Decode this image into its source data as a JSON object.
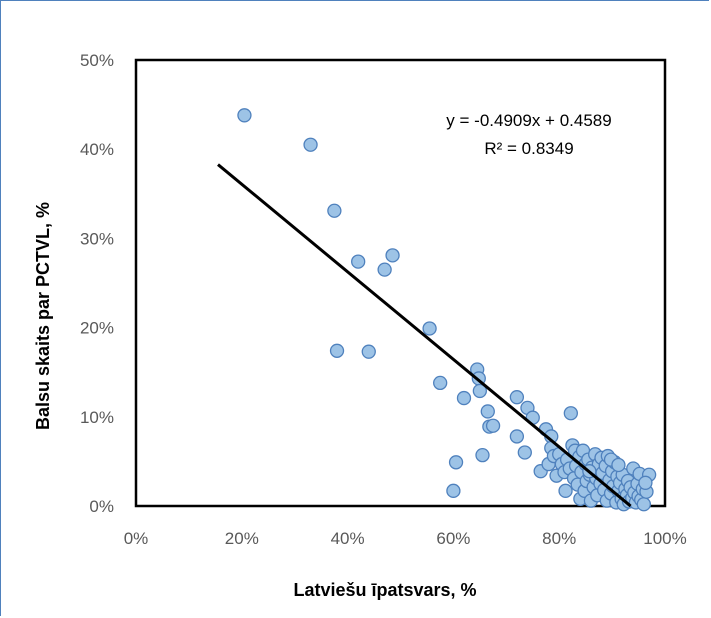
{
  "chart_data": {
    "type": "scatter",
    "title": "",
    "xlabel": "Latviešu īpatsvars, %",
    "ylabel": "Balsu skaits par PCTVL, %",
    "xlim": [
      0,
      1
    ],
    "ylim": [
      0,
      0.5
    ],
    "x_ticks": [
      "0%",
      "20%",
      "40%",
      "60%",
      "80%",
      "100%"
    ],
    "y_ticks": [
      "0%",
      "10%",
      "20%",
      "30%",
      "40%",
      "50%"
    ],
    "grid": false,
    "legend": "none",
    "marker_color": "#9dc3e6",
    "marker_edge_color": "#4f81bd",
    "trendline": {
      "type": "linear",
      "slope": -0.4909,
      "intercept": 0.4589,
      "x_range": [
        0.155,
        0.935
      ],
      "equation_label": "y = -0.4909x + 0.4589",
      "r2_label": "R² = 0.8349",
      "color": "#000000"
    },
    "points": [
      [
        0.205,
        0.438
      ],
      [
        0.33,
        0.405
      ],
      [
        0.375,
        0.331
      ],
      [
        0.38,
        0.174
      ],
      [
        0.42,
        0.274
      ],
      [
        0.44,
        0.173
      ],
      [
        0.47,
        0.265
      ],
      [
        0.485,
        0.281
      ],
      [
        0.555,
        0.199
      ],
      [
        0.575,
        0.138
      ],
      [
        0.6,
        0.017
      ],
      [
        0.605,
        0.049
      ],
      [
        0.62,
        0.121
      ],
      [
        0.645,
        0.153
      ],
      [
        0.648,
        0.143
      ],
      [
        0.65,
        0.129
      ],
      [
        0.655,
        0.057
      ],
      [
        0.665,
        0.106
      ],
      [
        0.668,
        0.089
      ],
      [
        0.675,
        0.09
      ],
      [
        0.72,
        0.078
      ],
      [
        0.72,
        0.122
      ],
      [
        0.735,
        0.06
      ],
      [
        0.74,
        0.11
      ],
      [
        0.75,
        0.099
      ],
      [
        0.765,
        0.039
      ],
      [
        0.775,
        0.086
      ],
      [
        0.78,
        0.047
      ],
      [
        0.785,
        0.078
      ],
      [
        0.785,
        0.065
      ],
      [
        0.79,
        0.056
      ],
      [
        0.795,
        0.034
      ],
      [
        0.8,
        0.058
      ],
      [
        0.805,
        0.047
      ],
      [
        0.81,
        0.038
      ],
      [
        0.812,
        0.017
      ],
      [
        0.815,
        0.052
      ],
      [
        0.82,
        0.042
      ],
      [
        0.822,
        0.104
      ],
      [
        0.825,
        0.068
      ],
      [
        0.828,
        0.031
      ],
      [
        0.83,
        0.062
      ],
      [
        0.832,
        0.045
      ],
      [
        0.835,
        0.024
      ],
      [
        0.838,
        0.055
      ],
      [
        0.84,
        0.008
      ],
      [
        0.842,
        0.038
      ],
      [
        0.845,
        0.062
      ],
      [
        0.848,
        0.017
      ],
      [
        0.85,
        0.047
      ],
      [
        0.852,
        0.028
      ],
      [
        0.855,
        0.052
      ],
      [
        0.858,
        0.035
      ],
      [
        0.86,
        0.006
      ],
      [
        0.862,
        0.043
      ],
      [
        0.865,
        0.021
      ],
      [
        0.868,
        0.058
      ],
      [
        0.87,
        0.031
      ],
      [
        0.872,
        0.012
      ],
      [
        0.875,
        0.047
      ],
      [
        0.878,
        0.025
      ],
      [
        0.88,
        0.054
      ],
      [
        0.882,
        0.037
      ],
      [
        0.885,
        0.018
      ],
      [
        0.888,
        0.045
      ],
      [
        0.89,
        0.006
      ],
      [
        0.892,
        0.056
      ],
      [
        0.895,
        0.029
      ],
      [
        0.898,
        0.014
      ],
      [
        0.9,
        0.039
      ],
      [
        0.902,
        0.022
      ],
      [
        0.905,
        0.049
      ],
      [
        0.908,
        0.004
      ],
      [
        0.91,
        0.033
      ],
      [
        0.912,
        0.017
      ],
      [
        0.915,
        0.026
      ],
      [
        0.918,
        0.008
      ],
      [
        0.92,
        0.035
      ],
      [
        0.922,
        0.002
      ],
      [
        0.925,
        0.019
      ],
      [
        0.928,
        0.012
      ],
      [
        0.93,
        0.028
      ],
      [
        0.932,
        0.005
      ],
      [
        0.935,
        0.021
      ],
      [
        0.938,
        0.009
      ],
      [
        0.94,
        0.042
      ],
      [
        0.942,
        0.015
      ],
      [
        0.945,
        0.004
      ],
      [
        0.948,
        0.025
      ],
      [
        0.95,
        0.011
      ],
      [
        0.952,
        0.036
      ],
      [
        0.955,
        0.007
      ],
      [
        0.958,
        0.019
      ],
      [
        0.96,
        0.002
      ],
      [
        0.965,
        0.016
      ],
      [
        0.97,
        0.035
      ],
      [
        0.963,
        0.026
      ],
      [
        0.898,
        0.052
      ],
      [
        0.912,
        0.046
      ],
      [
        0.857,
        0.039
      ]
    ]
  }
}
